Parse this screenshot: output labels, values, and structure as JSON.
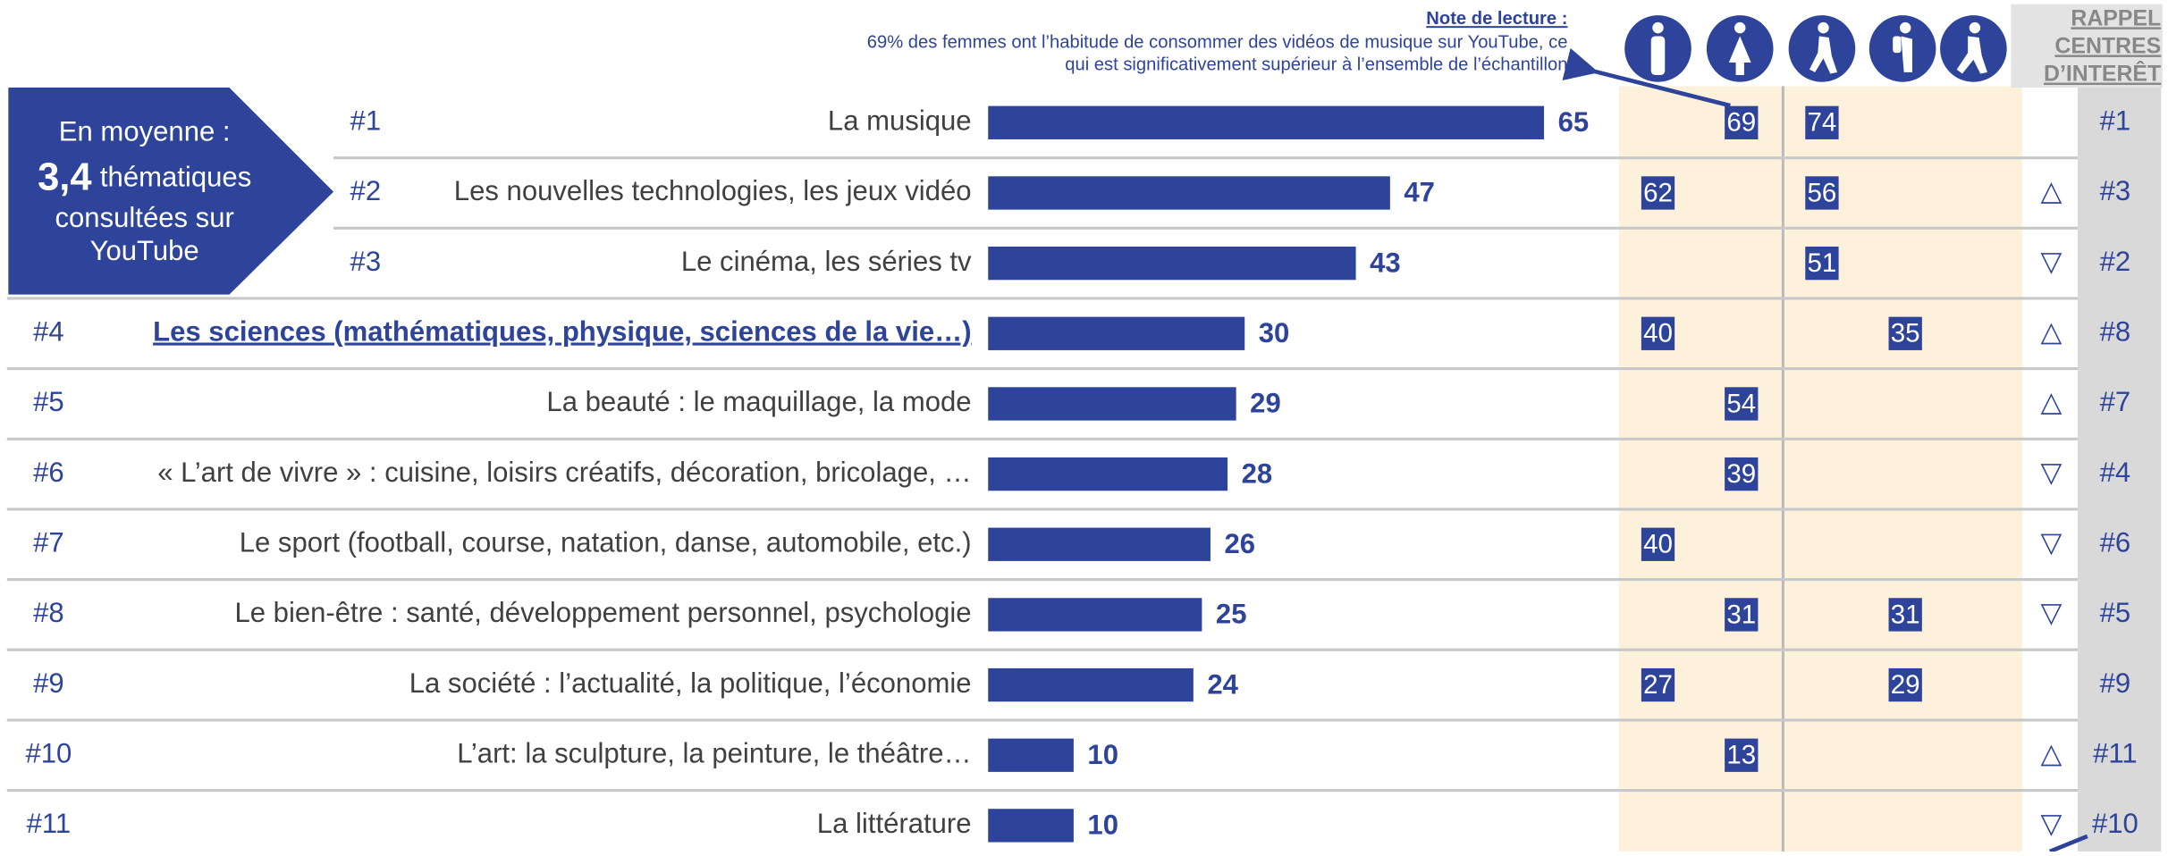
{
  "note": {
    "title": "Note de lecture :",
    "lines": [
      "69% des femmes ont l’habitude de consommer des vidéos de musique sur YouTube, ce",
      "qui est significativement supérieur à l’ensemble de l’échantillon"
    ]
  },
  "recall_header": [
    "RAPPEL",
    "CENTRES",
    "D’INTERÊT"
  ],
  "callout": {
    "line1": "En moyenne :",
    "number": "3,4",
    "line2": "thématiques",
    "line3": "consultées sur",
    "line4": "YouTube"
  },
  "rows": [
    {
      "rank": "#1",
      "label": "La musique",
      "value": 65,
      "cells": [
        null,
        69,
        74,
        null,
        null
      ],
      "trend": null,
      "recall": "#1"
    },
    {
      "rank": "#2",
      "label": "Les nouvelles technologies, les jeux vidéo",
      "value": 47,
      "cells": [
        62,
        null,
        56,
        null,
        null
      ],
      "trend": "△",
      "recall": "#3"
    },
    {
      "rank": "#3",
      "label": "Le cinéma, les séries tv",
      "value": 43,
      "cells": [
        null,
        null,
        51,
        null,
        null
      ],
      "trend": "▽",
      "recall": "#2"
    },
    {
      "rank": "#4",
      "label": "Les sciences (mathématiques, physique, sciences de la vie…)",
      "value": 30,
      "cells": [
        40,
        null,
        null,
        35,
        null
      ],
      "trend": "△",
      "recall": "#8"
    },
    {
      "rank": "#5",
      "label": "La beauté : le maquillage, la mode",
      "value": 29,
      "cells": [
        null,
        54,
        null,
        null,
        null
      ],
      "trend": "△",
      "recall": "#7"
    },
    {
      "rank": "#6",
      "label": "« L’art de vivre » : cuisine, loisirs créatifs, décoration, bricolage, …",
      "value": 28,
      "cells": [
        null,
        39,
        null,
        null,
        null
      ],
      "trend": "▽",
      "recall": "#4"
    },
    {
      "rank": "#7",
      "label": "Le sport (football, course, natation, danse, automobile, etc.)",
      "value": 26,
      "cells": [
        40,
        null,
        null,
        null,
        null
      ],
      "trend": "▽",
      "recall": "#6"
    },
    {
      "rank": "#8",
      "label": "Le bien-être : santé, développement personnel, psychologie",
      "value": 25,
      "cells": [
        null,
        31,
        null,
        31,
        null
      ],
      "trend": "▽",
      "recall": "#5"
    },
    {
      "rank": "#9",
      "label": "La société : l’actualité, la politique, l’économie",
      "value": 24,
      "cells": [
        27,
        null,
        null,
        29,
        null
      ],
      "trend": null,
      "recall": "#9"
    },
    {
      "rank": "#10",
      "label": "L’art: la sculpture, la peinture, le théâtre…",
      "value": 10,
      "cells": [
        null,
        13,
        null,
        null,
        null
      ],
      "trend": "△",
      "recall": "#11"
    },
    {
      "rank": "#11",
      "label": "La littérature",
      "value": 10,
      "cells": [
        null,
        null,
        null,
        null,
        null
      ],
      "trend": "▽",
      "recall": "#10"
    }
  ]
}
